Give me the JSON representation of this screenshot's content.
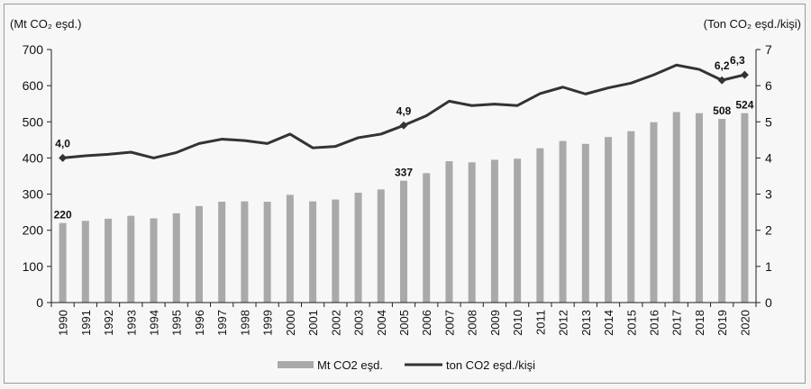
{
  "chart_data": {
    "type": "bar+line",
    "title": "",
    "left_axis_label": "(Mt CO₂ eşd.)",
    "right_axis_label": "(Ton CO₂ eşd./kişi)",
    "ylim_left": [
      0,
      700
    ],
    "yticks_left": [
      "0",
      "100",
      "200",
      "300",
      "400",
      "500",
      "600",
      "700"
    ],
    "ylim_right": [
      0,
      7
    ],
    "yticks_right": [
      "0",
      "1",
      "2",
      "3",
      "4",
      "5",
      "6",
      "7"
    ],
    "categories": [
      "1990",
      "1991",
      "1992",
      "1993",
      "1994",
      "1995",
      "1996",
      "1997",
      "1998",
      "1999",
      "2000",
      "2001",
      "2002",
      "2003",
      "2004",
      "2005",
      "2006",
      "2007",
      "2008",
      "2009",
      "2010",
      "2011",
      "2012",
      "2013",
      "2014",
      "2015",
      "2016",
      "2017",
      "2018",
      "2019",
      "2020"
    ],
    "series": [
      {
        "name": "Mt CO2 eşd.",
        "type": "bar",
        "axis": "left",
        "color": "#a9a9a9",
        "values": [
          220,
          226,
          232,
          240,
          233,
          247,
          267,
          279,
          280,
          279,
          298,
          280,
          285,
          304,
          313,
          337,
          358,
          391,
          388,
          395,
          398,
          427,
          447,
          439,
          458,
          474,
          499,
          527,
          524,
          508,
          524
        ],
        "labels": {
          "0": "220",
          "15": "337",
          "29": "508",
          "30": "524"
        }
      },
      {
        "name": "ton CO2 eşd./kişi",
        "type": "line",
        "axis": "right",
        "color": "#333333",
        "values": [
          4.0,
          4.06,
          4.1,
          4.16,
          4.0,
          4.15,
          4.4,
          4.52,
          4.48,
          4.4,
          4.66,
          4.28,
          4.32,
          4.56,
          4.66,
          4.9,
          5.17,
          5.57,
          5.45,
          5.49,
          5.45,
          5.78,
          5.96,
          5.77,
          5.94,
          6.07,
          6.3,
          6.57,
          6.45,
          6.15,
          6.3
        ],
        "labels": {
          "0": "4,0",
          "15": "4,9",
          "29": "6,2",
          "30": "6,3"
        }
      }
    ],
    "legend_position": "bottom",
    "grid": false
  }
}
